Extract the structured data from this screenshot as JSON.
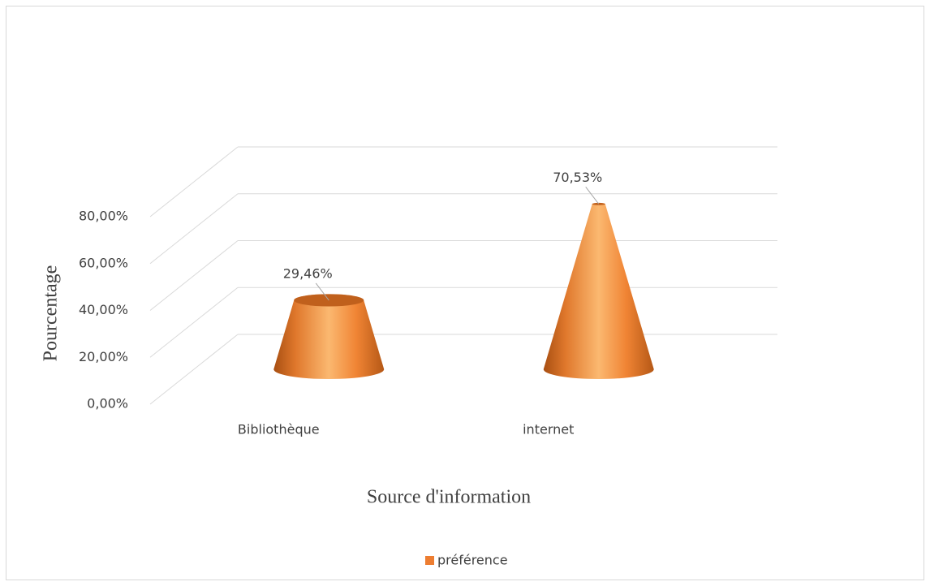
{
  "chart_data": {
    "type": "cone3d",
    "x_label": "Source d'information",
    "y_label": "Pourcentage",
    "categories": [
      "Bibliothèque",
      "internet"
    ],
    "series": [
      {
        "name": "préférence",
        "color": "#ed7d31",
        "values": [
          29.46,
          70.53
        ],
        "value_labels": [
          "29,46%",
          "70,53%"
        ]
      }
    ],
    "ylim": [
      0,
      80
    ],
    "yticks": [
      {
        "value": 0,
        "label": "0,00%"
      },
      {
        "value": 20,
        "label": "20,00%"
      },
      {
        "value": 40,
        "label": "40,00%"
      },
      {
        "value": 60,
        "label": "60,00%"
      },
      {
        "value": 80,
        "label": "80,00%"
      }
    ],
    "grid": true,
    "legend": "bottom"
  }
}
